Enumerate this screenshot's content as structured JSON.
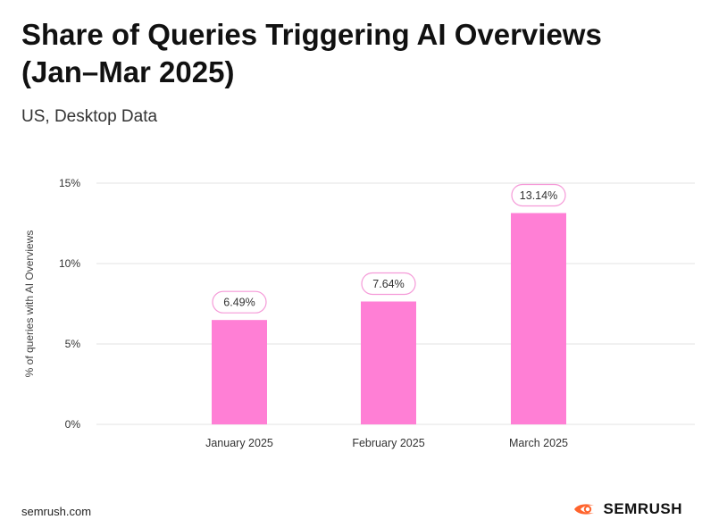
{
  "header": {
    "title": "Share of Queries Triggering AI Overviews (Jan–Mar 2025)",
    "subtitle": "US, Desktop Data"
  },
  "footer": {
    "url": "semrush.com",
    "brand": "SEMRUSH",
    "brand_icon": "semrush-flame-logo",
    "brand_color": "#ff642d"
  },
  "colors": {
    "bar": "#ff7fd5",
    "label_border": "#f59ad8",
    "grid": "#e3e3e3",
    "text": "#333333"
  },
  "chart_data": {
    "type": "bar",
    "title": "",
    "xlabel": "",
    "ylabel": "% of queries with AI Overviews",
    "categories": [
      "January 2025",
      "February 2025",
      "March 2025"
    ],
    "values": [
      6.49,
      7.64,
      13.14
    ],
    "data_labels": [
      "6.49%",
      "7.64%",
      "13.14%"
    ],
    "ylim": [
      0,
      15
    ],
    "yticks": [
      0,
      5,
      10,
      15
    ],
    "ytick_labels": [
      "0%",
      "5%",
      "10%",
      "15%"
    ],
    "grid": true,
    "legend": "none"
  }
}
